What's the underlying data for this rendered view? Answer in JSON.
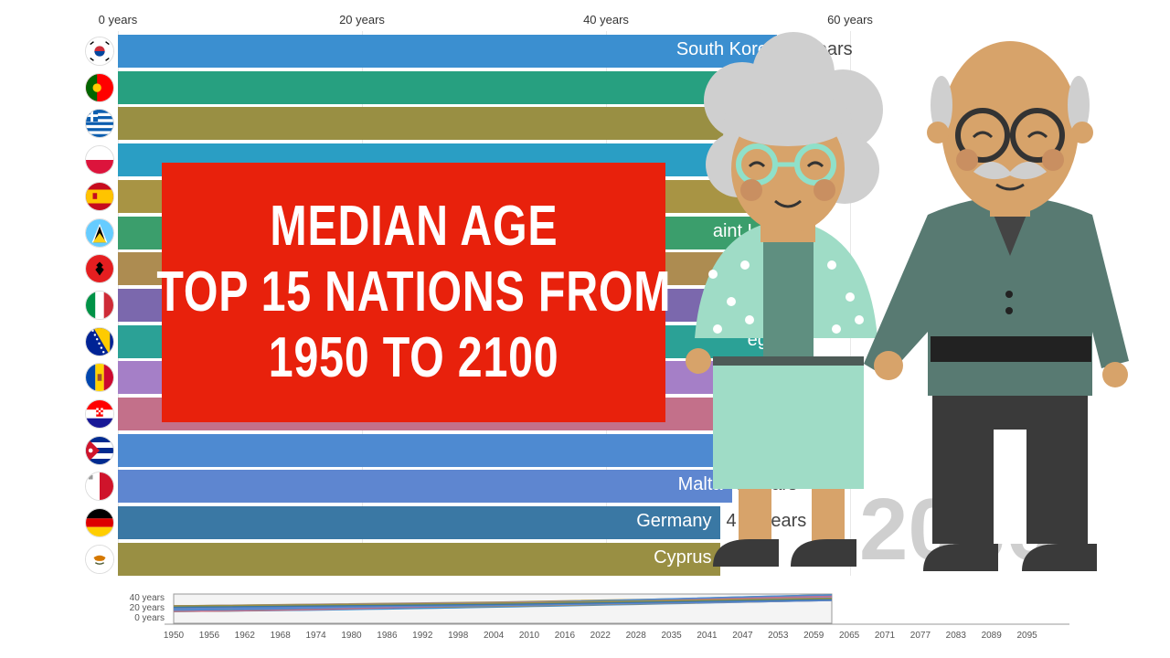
{
  "chart_data": {
    "type": "bar",
    "orientation": "horizontal",
    "x_ticks": [
      "0 years",
      "20 years",
      "40 years",
      "60 years"
    ],
    "xlim": [
      0,
      60
    ],
    "year": "2060",
    "bars": [
      {
        "name": "South Korea",
        "value": 54,
        "value_label": "54 years",
        "color": "#3b8fd0"
      },
      {
        "name": "Portugal",
        "value": 54,
        "value_label": "",
        "color": "#27a080"
      },
      {
        "name": "Greece",
        "value": 54,
        "value_label": "",
        "color": "#998f43"
      },
      {
        "name": "Poland",
        "value": 54,
        "value_label": "",
        "color": "#2a9ec4"
      },
      {
        "name": "Spain",
        "value": 54,
        "value_label": "",
        "color": "#a89444"
      },
      {
        "name": "Saint Lucia",
        "value": 54,
        "value_label": "",
        "color": "#3b9e6c"
      },
      {
        "name": "Albania",
        "value": 54,
        "value_label": "",
        "color": "#ad8c51"
      },
      {
        "name": "Italy",
        "value": 54,
        "value_label": "",
        "color": "#7b68ad"
      },
      {
        "name": "Bosnia and Herzegovina",
        "value": 54,
        "value_label": "",
        "color": "#2ba196"
      },
      {
        "name": "Moldova",
        "value": 54,
        "value_label": "",
        "color": "#a57fc7"
      },
      {
        "name": "Croatia",
        "value": 54,
        "value_label": "",
        "color": "#c3708a"
      },
      {
        "name": "Cuba",
        "value": 54,
        "value_label": "",
        "color": "#4e8ad1"
      },
      {
        "name": "Malta",
        "value": 50.3,
        "value_label": "2 years",
        "color": "#5e86d0"
      },
      {
        "name": "Germany",
        "value": 49.4,
        "value_label": "4  5 years",
        "color": "#3a78a4"
      },
      {
        "name": "Cyprus",
        "value": 49.4,
        "value_label": "",
        "color": "#998f43"
      }
    ],
    "visible_labels": [
      "South Kore",
      "P",
      "",
      "",
      "S",
      "aint Lu",
      "Alba",
      "",
      "eg",
      "Molde",
      "Croat",
      "Cub",
      "Malta",
      "Germany",
      "Cyprus"
    ],
    "timeline": {
      "y_ticks": [
        "40 years",
        "20 years",
        "0 years"
      ],
      "x_ticks": [
        "1950",
        "1956",
        "1962",
        "1968",
        "1974",
        "1980",
        "1986",
        "1992",
        "1998",
        "2004",
        "2010",
        "2016",
        "2022",
        "2028",
        "2035",
        "2041",
        "2047",
        "2053",
        "2059",
        "2065",
        "2071",
        "2077",
        "2083",
        "2089",
        "2095"
      ]
    }
  },
  "title_box": {
    "line1": "MEDIAN AGE",
    "line2": "TOP 15 NATIONS FROM",
    "line3": "1950 TO 2100"
  },
  "icons": [
    "south-korea-flag-icon",
    "portugal-flag-icon",
    "greece-flag-icon",
    "poland-flag-icon",
    "spain-flag-icon",
    "saint-lucia-flag-icon",
    "albania-flag-icon",
    "italy-flag-icon",
    "bosnia-flag-icon",
    "moldova-flag-icon",
    "croatia-flag-icon",
    "cuba-flag-icon",
    "malta-flag-icon",
    "germany-flag-icon",
    "cyprus-flag-icon"
  ]
}
